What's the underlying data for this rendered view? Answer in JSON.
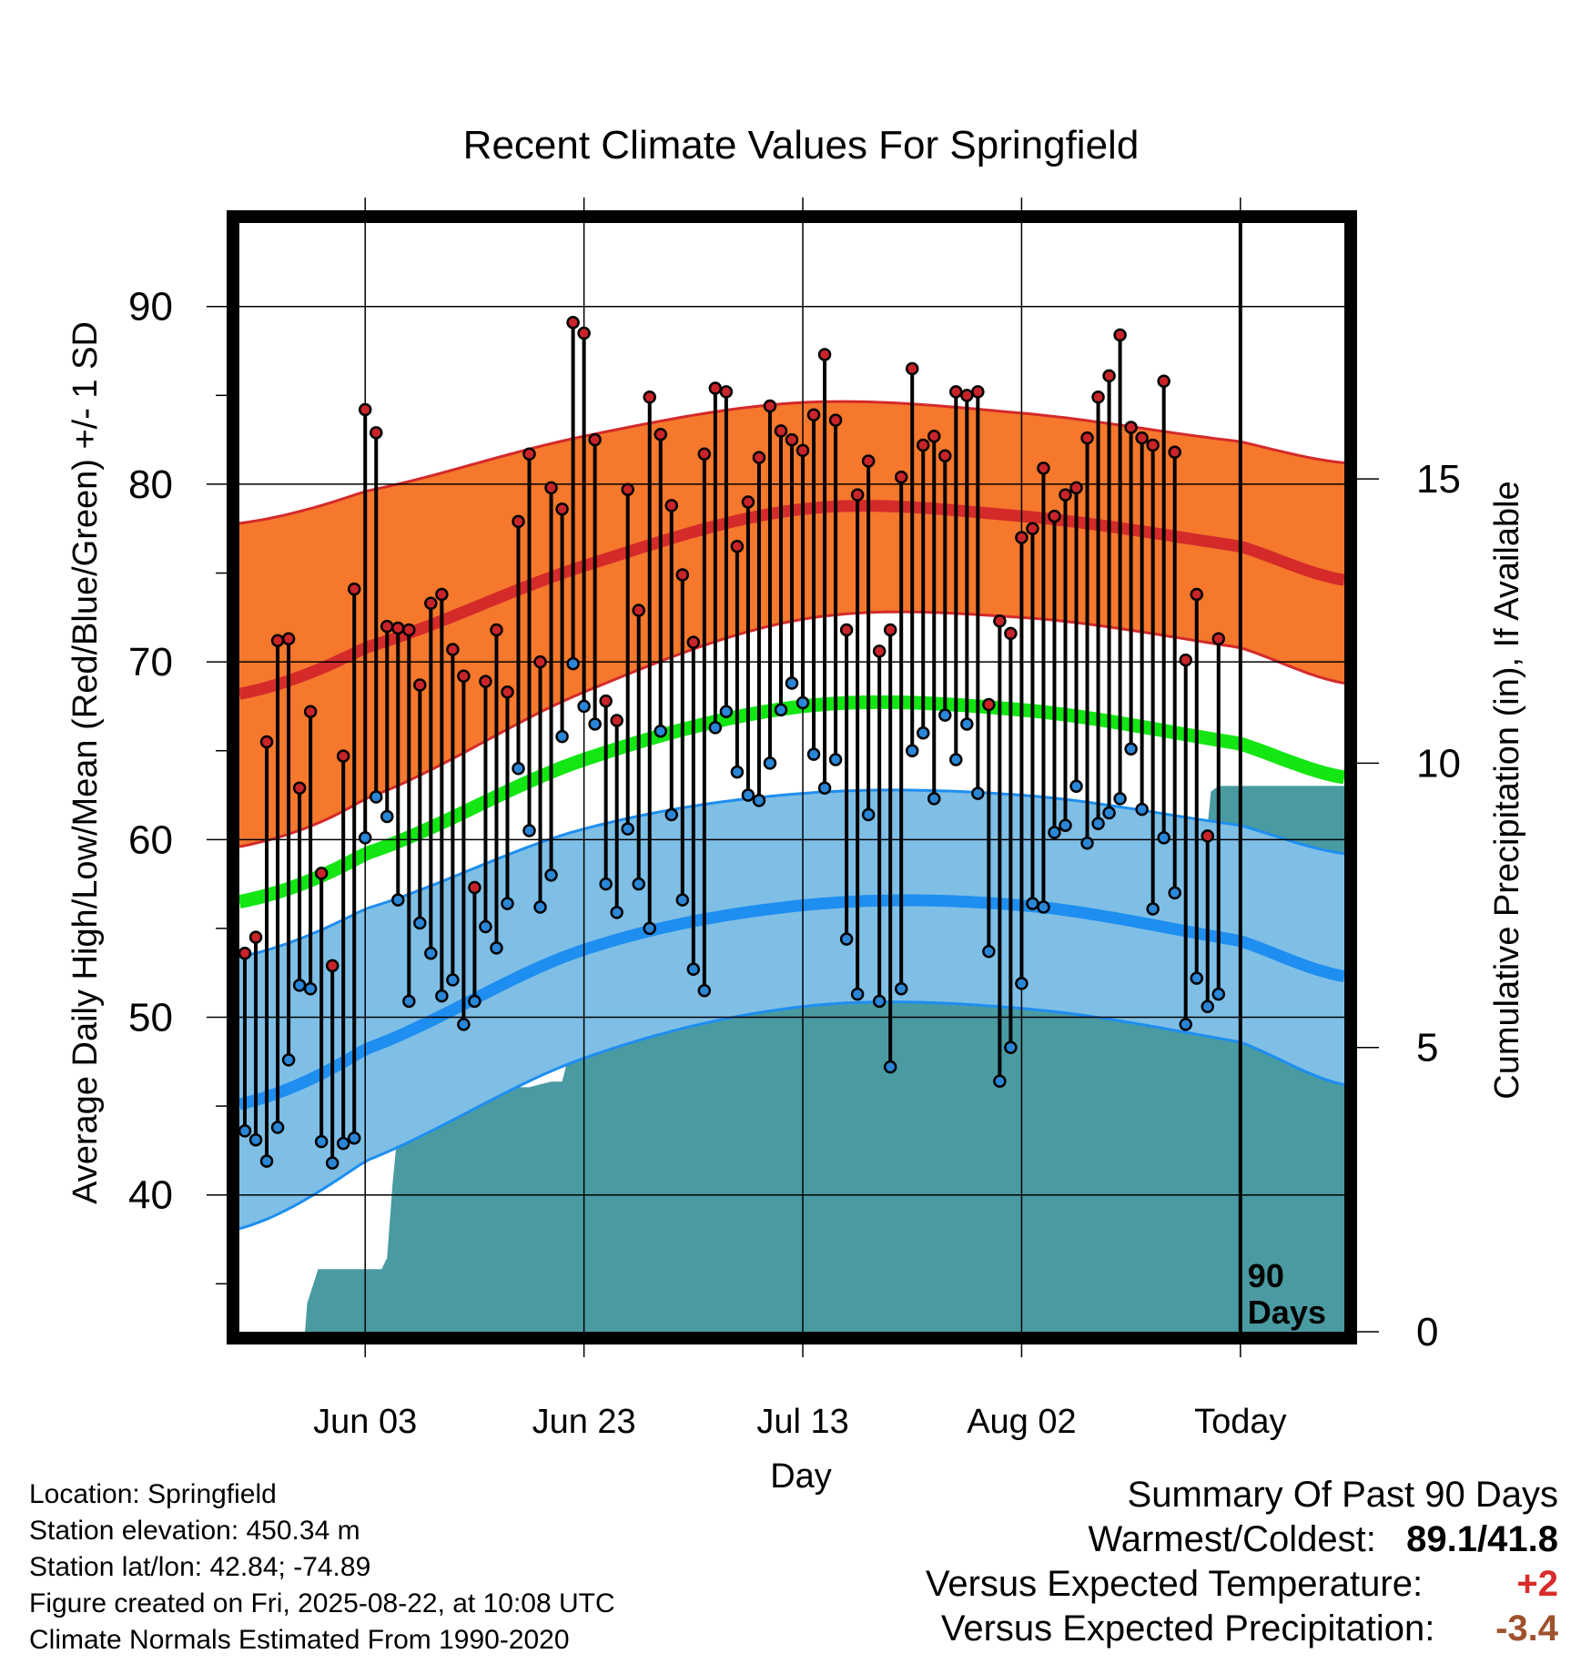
{
  "chart_data": {
    "type": "line",
    "title": "Recent Climate Values For Springfield",
    "xlabel": "Day",
    "ylabel": "Average Daily High/Low/Mean (Red/Blue/Green) +/- 1 SD",
    "y2label": "Cumulative Precipitation (in), If Available",
    "x_tick_labels": [
      "Jun 03",
      "Jun 23",
      "Jul 13",
      "Aug 02",
      "Today"
    ],
    "y_tick_labels": [
      "40",
      "50",
      "60",
      "70",
      "80",
      "90"
    ],
    "y2_tick_labels": [
      "0",
      "5",
      "10",
      "15"
    ],
    "ylim": [
      32.3,
      94.7
    ],
    "y2lim": [
      0,
      19.5
    ],
    "xlim": [
      -11.5,
      89.5
    ],
    "x_ticks": [
      0,
      20,
      40,
      60,
      80
    ],
    "today_x": 80,
    "today_label": [
      "90",
      "Days"
    ],
    "normal_high": {
      "x": [
        -11.5,
        0,
        20,
        40,
        60,
        80,
        89.5
      ],
      "mean": [
        68.2,
        70.8,
        75.4,
        78.6,
        78.2,
        76.5,
        74.6
      ],
      "upper": [
        77.8,
        79.6,
        82.7,
        84.6,
        84.0,
        82.4,
        81.2
      ],
      "lower": [
        59.6,
        62.3,
        68.3,
        72.4,
        72.5,
        70.8,
        68.8
      ]
    },
    "normal_mean": {
      "x": [
        -11.5,
        0,
        20,
        40,
        60,
        80,
        89.5
      ],
      "values": [
        56.5,
        59.2,
        64.5,
        67.5,
        67.3,
        65.4,
        63.5
      ]
    },
    "normal_low": {
      "x": [
        -11.5,
        0,
        20,
        40,
        60,
        80,
        89.5
      ],
      "mean": [
        45.1,
        48.2,
        53.8,
        56.3,
        56.3,
        54.3,
        52.3
      ],
      "upper": [
        53.4,
        56.1,
        60.6,
        62.6,
        62.5,
        60.8,
        59.2
      ],
      "lower": [
        38.1,
        41.9,
        47.7,
        50.6,
        50.5,
        48.6,
        46.2
      ]
    },
    "daily_high": [
      53.6,
      54.5,
      65.5,
      71.2,
      71.3,
      62.9,
      67.2,
      58.1,
      52.9,
      64.7,
      74.1,
      84.2,
      82.9,
      72.0,
      71.9,
      71.8,
      68.7,
      73.3,
      73.8,
      70.7,
      69.2,
      57.3,
      68.9,
      71.8,
      68.3,
      77.9,
      81.7,
      70.0,
      79.8,
      78.6,
      89.1,
      88.5,
      82.5,
      67.8,
      66.7,
      79.7,
      72.9,
      84.9,
      82.8,
      78.8,
      74.9,
      71.1,
      81.7,
      85.4,
      85.2,
      76.5,
      79.0,
      81.5,
      84.4,
      83.0,
      82.5,
      81.9,
      83.9,
      87.3,
      83.6,
      71.8,
      79.4,
      81.3,
      70.6,
      71.8,
      80.4,
      86.5,
      82.2,
      82.7,
      81.6,
      85.2,
      85.0,
      85.2,
      67.6,
      72.3,
      71.6,
      77.0,
      77.5,
      80.9,
      78.2,
      79.4,
      79.8,
      82.6,
      84.9,
      86.1,
      88.4,
      83.2,
      82.6,
      82.2,
      85.8,
      81.8,
      70.1,
      73.8,
      60.2,
      71.3
    ],
    "daily_low": [
      43.6,
      43.1,
      41.9,
      43.8,
      47.6,
      51.8,
      51.6,
      43.0,
      41.8,
      42.9,
      43.2,
      60.1,
      62.4,
      61.3,
      56.6,
      50.9,
      55.3,
      53.6,
      51.2,
      52.1,
      49.6,
      50.9,
      55.1,
      53.9,
      56.4,
      64.0,
      60.5,
      56.2,
      58.0,
      65.8,
      69.9,
      67.5,
      66.5,
      57.5,
      55.9,
      60.6,
      57.5,
      55.0,
      66.1,
      61.4,
      56.6,
      52.7,
      51.5,
      66.3,
      67.2,
      63.8,
      62.5,
      62.2,
      64.3,
      67.3,
      68.8,
      67.7,
      64.8,
      62.9,
      64.5,
      54.4,
      51.3,
      61.4,
      50.9,
      47.2,
      51.6,
      65.0,
      66.0,
      62.3,
      67.0,
      64.5,
      66.5,
      62.6,
      53.7,
      46.4,
      48.3,
      51.9,
      56.4,
      56.2,
      60.4,
      60.8,
      63.0,
      59.8,
      60.9,
      61.5,
      62.3,
      65.1,
      61.7,
      56.1,
      60.1,
      57.0,
      49.6,
      52.2,
      50.6,
      51.3
    ],
    "precip_cumulative": {
      "x": [
        -11.5,
        -5.5,
        -5.3,
        -4.3,
        -3.2,
        0.0,
        1.5,
        2.0,
        2.5,
        3.0,
        3.5,
        4.0,
        4.3,
        5.0,
        6.0,
        7.0,
        8.0,
        8.5,
        10.0,
        11.0,
        12.0,
        14.0,
        15.0,
        16.0,
        17.0,
        18.0,
        18.4,
        18.6,
        19.0,
        20.0,
        20.5,
        21.0,
        22.0,
        22.5,
        23.0,
        24.0,
        25.0,
        26.0,
        27.0,
        28.0,
        29.0,
        30.0,
        31.0,
        32.0,
        33.0,
        34.0,
        35.0,
        36.0,
        37.0,
        38.0,
        39.0,
        40.0,
        41.0,
        42.0,
        43.0,
        44.0,
        45.0,
        46.0,
        47.0,
        48.0,
        49.0,
        50.0,
        51.0,
        52.0,
        53.0,
        54.0,
        54.5,
        56.0,
        57.0,
        57.5,
        58.0,
        59.0,
        60.0,
        61.0,
        62.0,
        63.0,
        64.0,
        65.0,
        66.0,
        67.0,
        68.0,
        69.0,
        70.0,
        71.0,
        72.0,
        73.0,
        74.0,
        75.0,
        76.0,
        77.0,
        77.3,
        78.0,
        79.0,
        80.0,
        81.0,
        82.0,
        84.0,
        86.0,
        88.0,
        89.5
      ],
      "values": [
        0,
        0,
        0.5,
        1.1,
        1.1,
        1.1,
        1.1,
        1.3,
        2.6,
        3.6,
        3.7,
        3.9,
        4.0,
        4.1,
        4.1,
        4.2,
        4.25,
        4.25,
        4.25,
        4.3,
        4.3,
        4.3,
        4.3,
        4.35,
        4.4,
        4.4,
        4.7,
        5.4,
        5.45,
        5.6,
        5.7,
        5.8,
        5.9,
        6.0,
        6.05,
        6.1,
        6.15,
        6.2,
        6.25,
        6.3,
        6.35,
        6.4,
        6.45,
        6.5,
        6.5,
        6.5,
        6.5,
        6.5,
        6.55,
        6.6,
        6.6,
        6.6,
        6.6,
        6.6,
        6.6,
        6.65,
        6.65,
        6.7,
        6.7,
        6.7,
        6.7,
        6.75,
        6.75,
        6.75,
        6.75,
        6.8,
        6.8,
        7.3,
        7.3,
        7.3,
        7.3,
        7.3,
        8.6,
        8.6,
        8.6,
        8.6,
        8.6,
        8.6,
        8.6,
        8.6,
        8.6,
        8.6,
        8.6,
        8.7,
        8.75,
        8.8,
        8.85,
        8.85,
        8.9,
        8.9,
        9.5,
        9.6,
        9.6,
        9.6,
        9.6,
        9.6,
        9.6,
        9.6,
        9.6,
        9.6
      ]
    },
    "legend": "none",
    "grid": true,
    "colors": {
      "high_band": "#f5782d",
      "high_line": "#d42a2a",
      "normal_mean": "#13e613",
      "low_band": "#7fbfe6",
      "low_line": "#1e8ef0",
      "precip": "#4a9aa2",
      "high_dot": "#c9242a",
      "low_dot": "#2a86d6"
    }
  },
  "info": {
    "location": "Location: Springfield",
    "elevation": "Station elevation: 450.34 m",
    "latlon": "Station lat/lon: 42.84; -74.89",
    "created": "Figure created on Fri, 2025-08-22, at 10:08 UTC",
    "normals": "Climate Normals Estimated From 1990-2020"
  },
  "summary": {
    "heading": "Summary Of Past 90 Days",
    "warm_cold_label": "Warmest/Coldest:",
    "warm_cold_value": "89.1/41.8",
    "temp_label": "Versus Expected Temperature:",
    "temp_value": "+2",
    "temp_color": "#d92b2b",
    "precip_label": "Versus Expected Precipitation:",
    "precip_value": "-3.4",
    "precip_color": "#a0522d"
  }
}
